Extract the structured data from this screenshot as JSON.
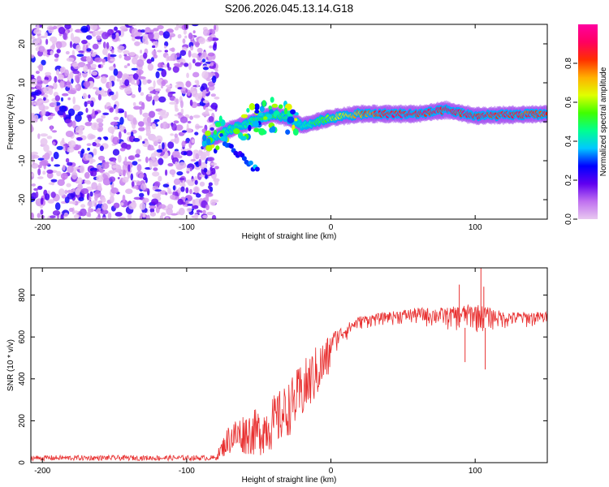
{
  "page_title": "S206.2026.045.13.14.G18",
  "chart_data": [
    {
      "type": "heatmap",
      "title": "S206.2026.045.13.14.G18",
      "xlabel": "Height of straight line (km)",
      "ylabel": "Frequency (Hz)",
      "xlim": [
        -208,
        150
      ],
      "ylim": [
        -25,
        25
      ],
      "xticks": [
        -200,
        -100,
        0,
        100
      ],
      "yticks": [
        -20,
        -10,
        0,
        10,
        20
      ],
      "colorbar": {
        "label": "Normalized spectral amplitude",
        "range": [
          0,
          1
        ],
        "ticks": [
          0.0,
          0.2,
          0.4,
          0.6,
          0.8
        ],
        "colors": [
          "#e8c8f0",
          "#c070f0",
          "#6000f0",
          "#0000ff",
          "#00c8ff",
          "#00ff90",
          "#40ff00",
          "#e0ff00",
          "#ffb000",
          "#ff3000",
          "#ff0060",
          "#ff00a0"
        ]
      },
      "noise_region_x": [
        -208,
        -85
      ],
      "signal_center_hz": [
        {
          "x": -85,
          "hz": -5
        },
        {
          "x": -70,
          "hz": -2
        },
        {
          "x": -55,
          "hz": 0
        },
        {
          "x": -40,
          "hz": 2
        },
        {
          "x": -30,
          "hz": 1
        },
        {
          "x": -20,
          "hz": -1
        },
        {
          "x": -10,
          "hz": 0
        },
        {
          "x": 0,
          "hz": 1
        },
        {
          "x": 20,
          "hz": 2
        },
        {
          "x": 60,
          "hz": 2
        },
        {
          "x": 80,
          "hz": 3
        },
        {
          "x": 100,
          "hz": 1.5
        },
        {
          "x": 150,
          "hz": 2
        }
      ],
      "signal_amplitude": [
        {
          "x": -85,
          "a": 0.45
        },
        {
          "x": -60,
          "a": 0.5
        },
        {
          "x": -40,
          "a": 0.55
        },
        {
          "x": -20,
          "a": 0.45
        },
        {
          "x": 0,
          "a": 0.65
        },
        {
          "x": 20,
          "a": 0.8
        },
        {
          "x": 40,
          "a": 0.95
        },
        {
          "x": 100,
          "a": 0.95
        },
        {
          "x": 150,
          "a": 0.9
        }
      ],
      "branch": {
        "x_from": -75,
        "x_to": -50,
        "hz_from": -5,
        "hz_to": -13
      }
    },
    {
      "type": "line",
      "xlabel": "Height of straight line (km)",
      "ylabel": "SNR (10 * v/v)",
      "xlim": [
        -208,
        150
      ],
      "ylim": [
        0,
        930
      ],
      "xticks": [
        -200,
        -100,
        0,
        100
      ],
      "yticks": [
        0,
        200,
        400,
        600,
        800
      ],
      "color": "#e83030",
      "envelope": [
        {
          "x": -208,
          "lo": 10,
          "hi": 35
        },
        {
          "x": -80,
          "lo": 10,
          "hi": 35
        },
        {
          "x": -70,
          "lo": 40,
          "hi": 200
        },
        {
          "x": -60,
          "lo": 40,
          "hi": 240
        },
        {
          "x": -50,
          "lo": 30,
          "hi": 260
        },
        {
          "x": -40,
          "lo": 60,
          "hi": 320
        },
        {
          "x": -30,
          "lo": 120,
          "hi": 380
        },
        {
          "x": -20,
          "lo": 200,
          "hi": 480
        },
        {
          "x": -10,
          "lo": 300,
          "hi": 560
        },
        {
          "x": 0,
          "lo": 420,
          "hi": 620
        },
        {
          "x": 10,
          "lo": 520,
          "hi": 660
        },
        {
          "x": 20,
          "lo": 590,
          "hi": 700
        },
        {
          "x": 40,
          "lo": 620,
          "hi": 720
        },
        {
          "x": 60,
          "lo": 590,
          "hi": 740
        },
        {
          "x": 80,
          "lo": 560,
          "hi": 740
        },
        {
          "x": 100,
          "lo": 520,
          "hi": 760
        },
        {
          "x": 120,
          "lo": 580,
          "hi": 720
        },
        {
          "x": 150,
          "lo": 600,
          "hi": 720
        }
      ],
      "spikes": [
        {
          "x": 89,
          "value": 850
        },
        {
          "x": 104,
          "value": 930
        },
        {
          "x": 106,
          "value": 840
        },
        {
          "x": 107,
          "value": 445
        },
        {
          "x": 93,
          "value": 480
        }
      ]
    }
  ]
}
